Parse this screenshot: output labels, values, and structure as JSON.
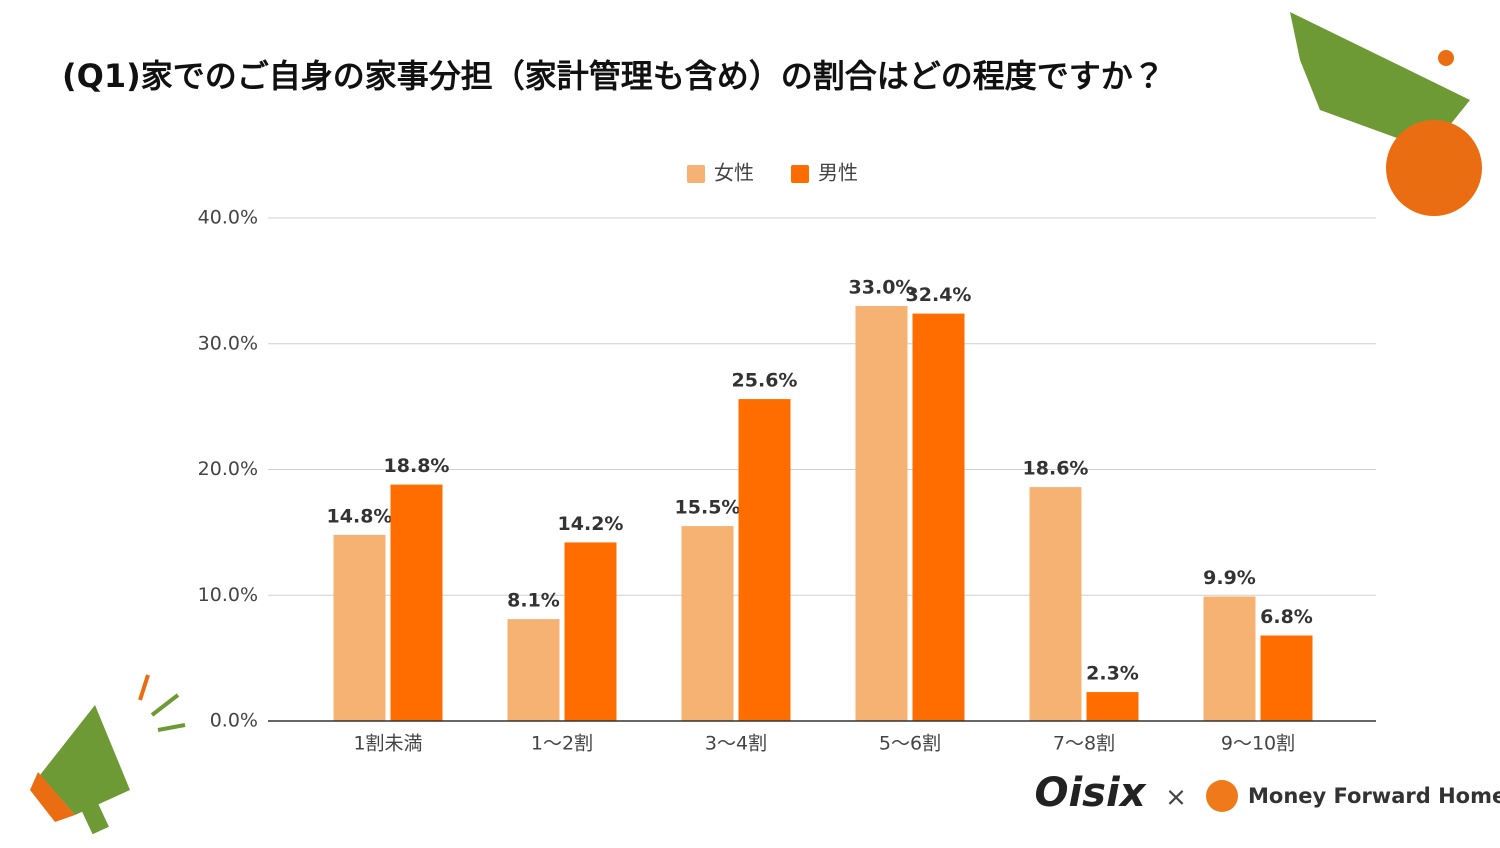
{
  "chart_data": {
    "type": "bar",
    "title": "(Q1)家でのご自身の家事分担（家計管理も含め）の割合はどの程度ですか？",
    "categories": [
      "1割未満",
      "1～2割",
      "3～4割",
      "5～6割",
      "7～8割",
      "9～10割"
    ],
    "series": [
      {
        "name": "女性",
        "color": "#f5b272",
        "values": [
          14.8,
          8.1,
          15.5,
          33.0,
          18.6,
          9.9
        ],
        "value_labels": [
          "14.8%",
          "8.1%",
          "15.5%",
          "33.0%",
          "18.6%",
          "9.9%"
        ]
      },
      {
        "name": "男性",
        "color": "#ff6d01",
        "values": [
          18.8,
          14.2,
          25.6,
          32.4,
          2.3,
          6.8
        ],
        "value_labels": [
          "18.8%",
          "14.2%",
          "25.6%",
          "32.4%",
          "2.3%",
          "6.8%"
        ]
      }
    ],
    "ylim": [
      0,
      40
    ],
    "yticks": [
      {
        "value": 0,
        "label": "0.0%"
      },
      {
        "value": 10,
        "label": "10.0%"
      },
      {
        "value": 20,
        "label": "20.0%"
      },
      {
        "value": 30,
        "label": "30.0%"
      },
      {
        "value": 40,
        "label": "40.0%"
      }
    ],
    "grid": true,
    "legend": "top"
  },
  "footer": {
    "logos": [
      "Oisix",
      "×",
      "Money Forward Home"
    ]
  }
}
